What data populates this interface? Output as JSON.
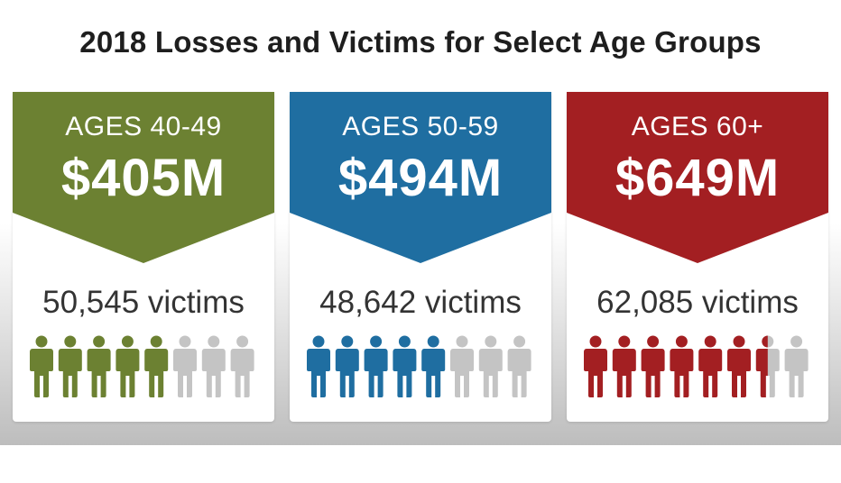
{
  "title": "2018 Losses and Victims for Select Age Groups",
  "colors": {
    "filled_grey": "#c4c4c4"
  },
  "groups": [
    {
      "age": "AGES 40-49",
      "amount": "$405M",
      "victims": "50,545 victims",
      "color": "#6c8132",
      "filled_figures": 5,
      "total_figures": 8
    },
    {
      "age": "AGES 50-59",
      "amount": "$494M",
      "victims": "48,642 victims",
      "color": "#1f6ea1",
      "filled_figures": 5,
      "total_figures": 8
    },
    {
      "age": "AGES 60+",
      "amount": "$649M",
      "victims": "62,085 victims",
      "color": "#a31f22",
      "filled_figures": 6.5,
      "total_figures": 8
    }
  ]
}
